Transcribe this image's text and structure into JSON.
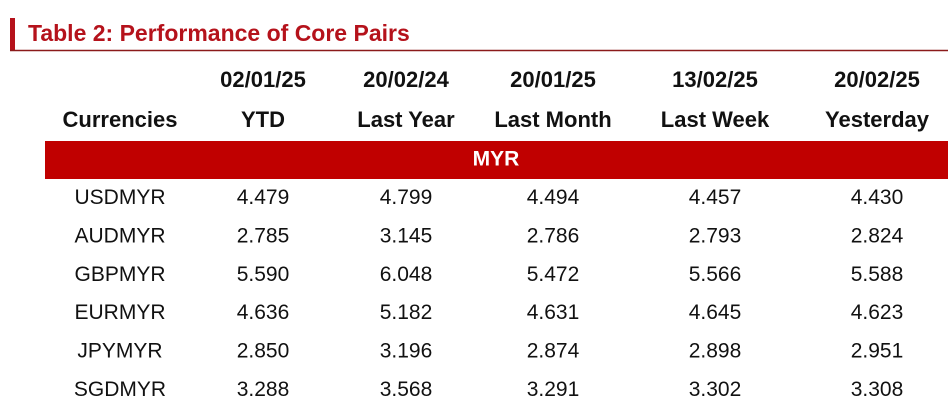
{
  "title": "Table 2: Performance of Core Pairs",
  "table": {
    "columns": [
      {
        "label": "Currencies"
      },
      {
        "date": "02/01/25",
        "label": "YTD"
      },
      {
        "date": "20/02/24",
        "label": "Last Year"
      },
      {
        "date": "20/01/25",
        "label": "Last Month"
      },
      {
        "date": "13/02/25",
        "label": "Last Week"
      },
      {
        "date": "20/02/25",
        "label": "Yesterday"
      }
    ],
    "sections": [
      {
        "name": "MYR",
        "rows": [
          [
            "USDMYR",
            "4.479",
            "4.799",
            "4.494",
            "4.457",
            "4.430"
          ],
          [
            "AUDMYR",
            "2.785",
            "3.145",
            "2.786",
            "2.793",
            "2.824"
          ],
          [
            "GBPMYR",
            "5.590",
            "6.048",
            "5.472",
            "5.566",
            "5.588"
          ],
          [
            "EURMYR",
            "4.636",
            "5.182",
            "4.631",
            "4.645",
            "4.623"
          ],
          [
            "JPYMYR",
            "2.850",
            "3.196",
            "2.874",
            "2.898",
            "2.951"
          ],
          [
            "SGDMYR",
            "3.288",
            "3.568",
            "3.291",
            "3.302",
            "3.308"
          ]
        ]
      }
    ]
  }
}
